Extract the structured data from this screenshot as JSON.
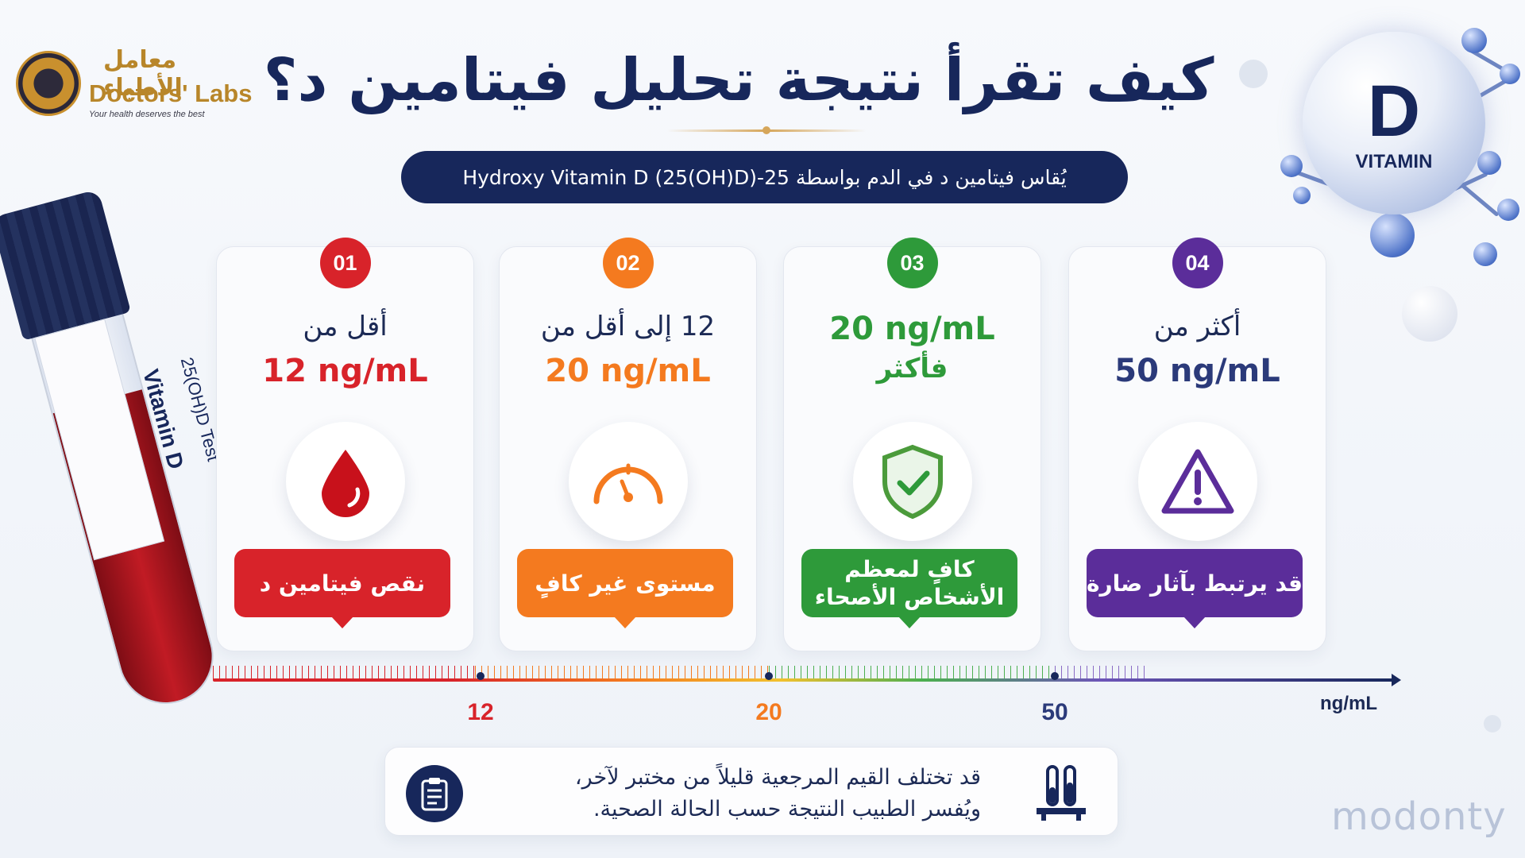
{
  "brand": {
    "name_ar": "معامل الأطباء",
    "name_en": "Doctors' Labs",
    "tagline": "Your health deserves the best"
  },
  "title": "كيف تقرأ نتيجة تحليل فيتامين د؟",
  "subtitle": "يُقاس فيتامين د في الدم بواسطة 25-Hydroxy Vitamin D (25(OH)D)",
  "sphere": {
    "letter": "D",
    "word": "VITAMIN"
  },
  "tube": {
    "label_main": "Vitamin D",
    "label_sub": "25(OH)D Test"
  },
  "cards": [
    {
      "num": "01",
      "line1": "أقل من",
      "line2": "12 ng/mL",
      "badge": "نقص فيتامين د",
      "icon": "blood-drop-icon",
      "color": "#d8232a"
    },
    {
      "num": "02",
      "line1": "12 إلى أقل من",
      "line2": "20 ng/mL",
      "badge": "مستوى غير كافٍ",
      "icon": "gauge-icon",
      "color": "#f47a1f"
    },
    {
      "num": "03",
      "line1": "20 ng/mL",
      "line2": "فأكثر",
      "badge": "كافٍ لمعظم الأشخاص الأصحاء",
      "icon": "shield-check-icon",
      "color": "#2e9a3a"
    },
    {
      "num": "04",
      "line1": "أكثر من",
      "line2": "50 ng/mL",
      "badge": "قد يرتبط بآثار ضارة",
      "icon": "warning-icon",
      "color": "#5b2d9a"
    }
  ],
  "scale": {
    "unit": "ng/mL",
    "ticks": [
      {
        "label": "12",
        "color": "#d8232a"
      },
      {
        "label": "20",
        "color": "#f47a1f"
      },
      {
        "label": "50",
        "color": "#2b3a7a"
      }
    ]
  },
  "note": {
    "line1": "قد تختلف القيم المرجعية قليلاً من مختبر لآخر،",
    "line2": "ويُفسر الطبيب النتيجة حسب الحالة الصحية."
  },
  "watermark": "modonty"
}
